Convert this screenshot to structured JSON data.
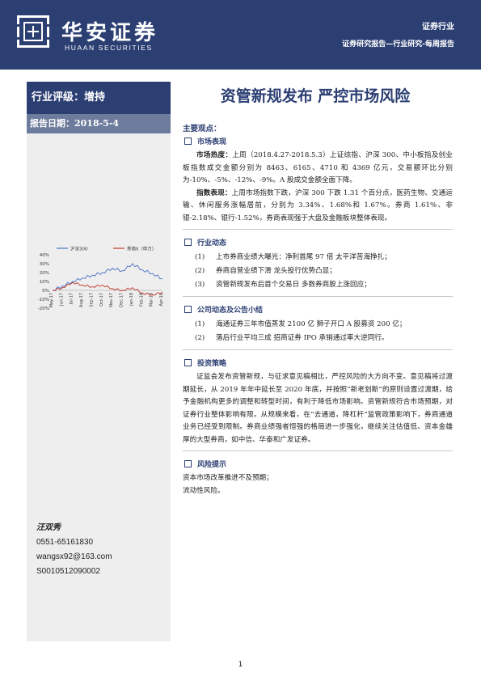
{
  "header": {
    "brand_cn": "华安证券",
    "brand_en": "HUAAN SECURITIES",
    "category": "证券行业",
    "report_type": "证券研究报告—行业研究-每周报告"
  },
  "sidebar": {
    "rating": "行业评级：增持",
    "report_date": "报告日期：2018-5-4",
    "author": {
      "name": "汪双秀",
      "phone": "0551-65161830",
      "email": "wangsx92@163.com",
      "cert": "S0010512090002"
    }
  },
  "chart_data": {
    "type": "line",
    "x": [
      "May-17",
      "Jun-17",
      "Jul-17",
      "Aug-17",
      "Sep-17",
      "Oct-17",
      "Nov-17",
      "Dec-17",
      "Jan-18",
      "Feb-18",
      "Mar-18",
      "Apr-18"
    ],
    "series": [
      {
        "name": "沪深300",
        "color": "#4a72c4",
        "values": [
          0,
          5,
          10,
          14,
          17,
          20,
          25,
          22,
          30,
          23,
          19,
          13
        ]
      },
      {
        "name": "券商II（申万）",
        "color": "#c0392b",
        "values": [
          0,
          3,
          9,
          6,
          4,
          6,
          2,
          0,
          3,
          -3,
          -5,
          -2
        ]
      }
    ],
    "yticks": [
      "40%",
      "30%",
      "20%",
      "10%",
      "0%",
      "-10%",
      "-20%"
    ],
    "ylim": [
      -20,
      40
    ],
    "legend": "top"
  },
  "title": "资管新规发布  严控市场风险",
  "key_points_label": "主要观点：",
  "sections": {
    "market": {
      "title": "市场表现",
      "p1_label": "市场热度：",
      "p1_text": "上周（2018.4.27-2018.5.3）上证综指、沪深 300、中小板指及创业板指数成交金额分别为 8463、6165、4710 和 4369 亿元，交易额环比分别为-10%、-5%、-12%、-9%。A 股成交金额全面下降。",
      "p2_label": "指数表现：",
      "p2_text": "上周市场指数下跌，沪深 300 下跌 1.31 个百分点，医药生物、交通运输、休闲服务涨幅居前，分别为 3.34%、1.68%和 1.67%。券商 1.61%、非银-2.18%、银行-1.52%，券商表现强于大盘及金融板块整体表现。"
    },
    "industry": {
      "title": "行业动态",
      "items": [
        {
          "n": "(1)",
          "t": "上市券商业绩大曝光：净利首尾 97 倍   太平洋苦海挣扎；"
        },
        {
          "n": "(2)",
          "t": "券商自营业绩下滑   龙头投行优势凸显；"
        },
        {
          "n": "(3)",
          "t": "资管新规发布后首个交易日   多数券商股上涨回应；"
        }
      ]
    },
    "company": {
      "title": "公司动态及公告小结",
      "items": [
        {
          "n": "(1)",
          "t": "海通证券三年市值蒸发 2100 亿  狮子开口 A 股募资 200 亿；"
        },
        {
          "n": "(2)",
          "t": "落后行业平均三成   招商证券 IPO 承销通过率大逆同行。"
        }
      ]
    },
    "strategy": {
      "title": "投资策略",
      "text": "证监会发布资管新规，与征求意见稿相比，严控风险的大方向不变。意见稿将过渡期延长，从 2019 年年中延长至 2020 年底，并按照“新老划断”的原则设置过渡期，给予金融机构更多的调整和转型时间，有利于降低市场影响。资管新规符合市场预期，对证券行业整体影响有限。从规模来看，在“去通道，降杠杆”监管政策影响下，券商通道业务已经受到限制。券商业绩强者恒强的格局进一步强化，继续关注估值低、资本金雄厚的大型券商，如中信、华泰和广发证券。"
    },
    "risk": {
      "title": "风险提示",
      "lines": [
        "资本市场改革推进不及预期；",
        "流动性风险。"
      ]
    }
  },
  "page_number": "1"
}
